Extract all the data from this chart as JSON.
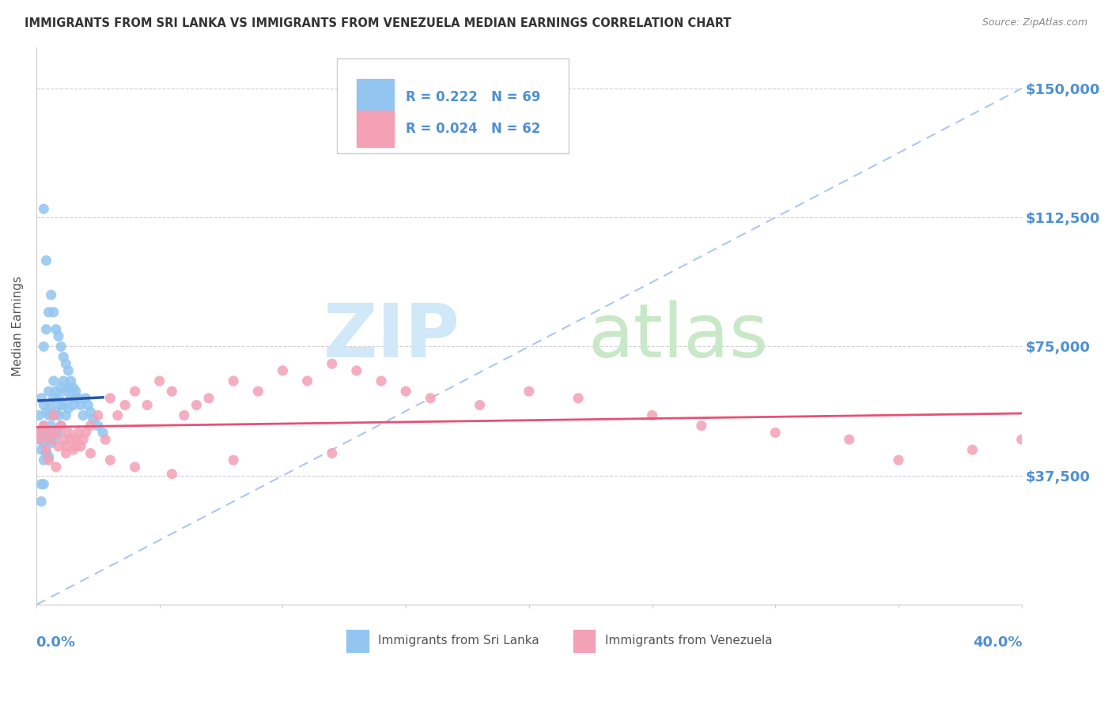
{
  "title": "IMMIGRANTS FROM SRI LANKA VS IMMIGRANTS FROM VENEZUELA MEDIAN EARNINGS CORRELATION CHART",
  "source": "Source: ZipAtlas.com",
  "ylabel": "Median Earnings",
  "yticks": [
    0,
    37500,
    75000,
    112500,
    150000
  ],
  "ytick_labels": [
    "",
    "$37,500",
    "$75,000",
    "$112,500",
    "$150,000"
  ],
  "xlim": [
    0.0,
    0.4
  ],
  "ylim": [
    0,
    162000
  ],
  "sri_lanka_R": 0.222,
  "sri_lanka_N": 69,
  "venezuela_R": 0.024,
  "venezuela_N": 62,
  "sri_lanka_color": "#92c5f0",
  "venezuela_color": "#f4a0b5",
  "sri_lanka_line_color": "#2255aa",
  "venezuela_line_color": "#e85075",
  "diagonal_color": "#aac8f0",
  "title_color": "#333333",
  "axis_label_color": "#4f90d0",
  "legend_text_color": "#333333",
  "watermark_zip_color": "#d0e8f8",
  "watermark_atlas_color": "#c8e8c8",
  "sri_lanka_x": [
    0.001,
    0.001,
    0.002,
    0.002,
    0.002,
    0.003,
    0.003,
    0.003,
    0.003,
    0.004,
    0.004,
    0.004,
    0.005,
    0.005,
    0.005,
    0.005,
    0.006,
    0.006,
    0.006,
    0.007,
    0.007,
    0.007,
    0.007,
    0.008,
    0.008,
    0.008,
    0.009,
    0.009,
    0.009,
    0.01,
    0.01,
    0.01,
    0.011,
    0.011,
    0.012,
    0.012,
    0.013,
    0.013,
    0.014,
    0.015,
    0.016,
    0.017,
    0.018,
    0.019,
    0.02,
    0.021,
    0.022,
    0.023,
    0.025,
    0.027,
    0.003,
    0.004,
    0.005,
    0.006,
    0.007,
    0.008,
    0.009,
    0.01,
    0.011,
    0.012,
    0.013,
    0.014,
    0.015,
    0.016,
    0.003,
    0.004,
    0.002,
    0.002,
    0.003
  ],
  "sri_lanka_y": [
    55000,
    48000,
    60000,
    50000,
    45000,
    58000,
    52000,
    47000,
    42000,
    56000,
    50000,
    44000,
    62000,
    55000,
    49000,
    43000,
    58000,
    52000,
    47000,
    65000,
    60000,
    55000,
    48000,
    62000,
    56000,
    50000,
    60000,
    55000,
    50000,
    63000,
    58000,
    52000,
    65000,
    58000,
    62000,
    55000,
    63000,
    57000,
    60000,
    58000,
    62000,
    60000,
    58000,
    55000,
    60000,
    58000,
    56000,
    54000,
    52000,
    50000,
    75000,
    80000,
    85000,
    90000,
    85000,
    80000,
    78000,
    75000,
    72000,
    70000,
    68000,
    65000,
    63000,
    60000,
    115000,
    100000,
    30000,
    35000,
    35000
  ],
  "venezuela_x": [
    0.001,
    0.002,
    0.003,
    0.004,
    0.005,
    0.006,
    0.007,
    0.008,
    0.009,
    0.01,
    0.011,
    0.012,
    0.013,
    0.014,
    0.015,
    0.016,
    0.017,
    0.018,
    0.019,
    0.02,
    0.022,
    0.025,
    0.028,
    0.03,
    0.033,
    0.036,
    0.04,
    0.045,
    0.05,
    0.055,
    0.06,
    0.065,
    0.07,
    0.08,
    0.09,
    0.1,
    0.11,
    0.12,
    0.13,
    0.14,
    0.15,
    0.16,
    0.18,
    0.2,
    0.22,
    0.25,
    0.27,
    0.3,
    0.33,
    0.35,
    0.38,
    0.4,
    0.005,
    0.008,
    0.012,
    0.016,
    0.022,
    0.03,
    0.04,
    0.055,
    0.08,
    0.12
  ],
  "venezuela_y": [
    50000,
    48000,
    52000,
    45000,
    50000,
    48000,
    55000,
    50000,
    46000,
    52000,
    48000,
    46000,
    50000,
    48000,
    45000,
    48000,
    50000,
    46000,
    48000,
    50000,
    52000,
    55000,
    48000,
    60000,
    55000,
    58000,
    62000,
    58000,
    65000,
    62000,
    55000,
    58000,
    60000,
    65000,
    62000,
    68000,
    65000,
    70000,
    68000,
    65000,
    62000,
    60000,
    58000,
    62000,
    60000,
    55000,
    52000,
    50000,
    48000,
    42000,
    45000,
    48000,
    42000,
    40000,
    44000,
    46000,
    44000,
    42000,
    40000,
    38000,
    42000,
    44000
  ]
}
